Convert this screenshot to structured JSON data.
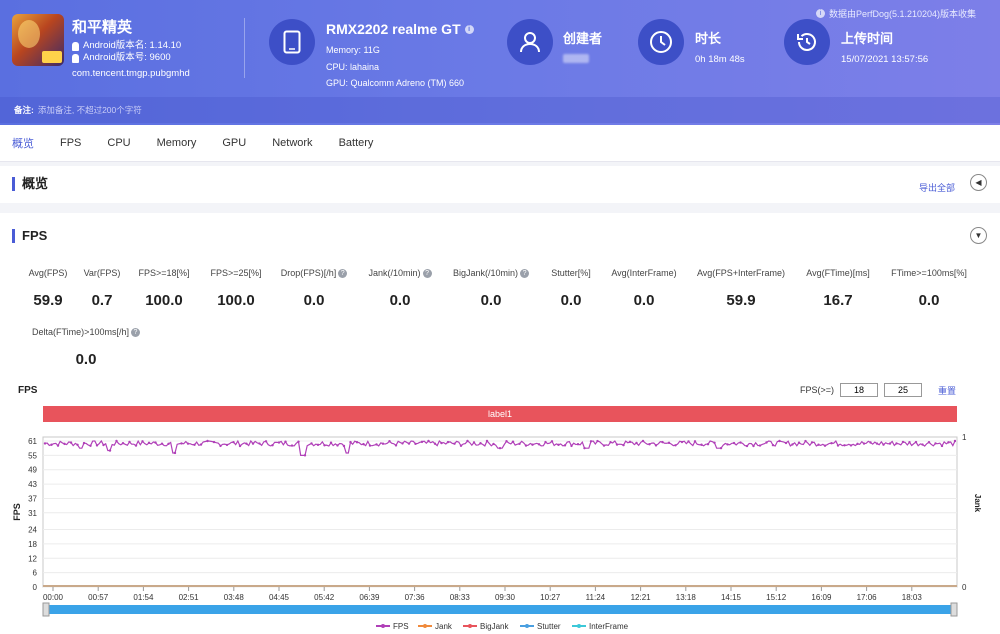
{
  "app": {
    "name": "和平精英",
    "version_name": "Android版本名: 1.14.10",
    "version_code": "Android版本号: 9600",
    "package": "com.tencent.tmgp.pubgmhd"
  },
  "device": {
    "name": "RMX2202 realme GT",
    "memory": "Memory: 11G",
    "cpu": "CPU: lahaina",
    "gpu": "GPU: Qualcomm Adreno (TM) 660"
  },
  "creator": {
    "label": "创建者"
  },
  "duration": {
    "label": "时长",
    "value": "0h 18m 48s"
  },
  "upload": {
    "label": "上传时间",
    "value": "15/07/2021 13:57:56"
  },
  "source": "数据由PerfDog(5.1.210204)版本收集",
  "note": {
    "label": "备注:",
    "placeholder": "添加备注, 不超过200个字符"
  },
  "tabs": [
    "概览",
    "FPS",
    "CPU",
    "Memory",
    "GPU",
    "Network",
    "Battery"
  ],
  "overview": {
    "title": "概览",
    "export_label": "导出全部"
  },
  "fps_section": {
    "title": "FPS"
  },
  "metrics": [
    {
      "label": "Avg(FPS)",
      "value": "59.9",
      "help": false
    },
    {
      "label": "Var(FPS)",
      "value": "0.7",
      "help": false
    },
    {
      "label": "FPS>=18[%]",
      "value": "100.0",
      "help": false
    },
    {
      "label": "FPS>=25[%]",
      "value": "100.0",
      "help": false
    },
    {
      "label": "Drop(FPS)[/h]",
      "value": "0.0",
      "help": true
    },
    {
      "label": "Jank(/10min)",
      "value": "0.0",
      "help": true
    },
    {
      "label": "BigJank(/10min)",
      "value": "0.0",
      "help": true
    },
    {
      "label": "Stutter[%]",
      "value": "0.0",
      "help": false
    },
    {
      "label": "Avg(InterFrame)",
      "value": "0.0",
      "help": false
    },
    {
      "label": "Avg(FPS+InterFrame)",
      "value": "59.9",
      "help": false
    },
    {
      "label": "Avg(FTime)[ms]",
      "value": "16.7",
      "help": false
    },
    {
      "label": "FTime>=100ms[%]",
      "value": "0.0",
      "help": false
    },
    {
      "label": "Delta(FTime)>100ms[/h]",
      "value": "0.0",
      "help": true
    }
  ],
  "chart_controls": {
    "title": "FPS",
    "threshold_label": "FPS(>=)",
    "threshold_1": "18",
    "threshold_2": "25",
    "reset_label": "重置",
    "label_band": "label1"
  },
  "chart_data": {
    "type": "line",
    "ylabel": "FPS",
    "y2label": "Jank",
    "ylim": [
      0,
      61
    ],
    "y_ticks": [
      0,
      6,
      12,
      18,
      24,
      31,
      37,
      43,
      49,
      55,
      61
    ],
    "y2lim": [
      0,
      1
    ],
    "x_ticks": [
      "00:00",
      "00:57",
      "01:54",
      "02:51",
      "03:48",
      "04:45",
      "05:42",
      "06:39",
      "07:36",
      "08:33",
      "09:30",
      "10:27",
      "11:24",
      "12:21",
      "13:18",
      "14:15",
      "15:12",
      "16:09",
      "17:06",
      "18:03"
    ],
    "series": [
      {
        "name": "FPS",
        "color": "#b040b8",
        "approx_value": 60,
        "dips": [
          [
            3.9,
            58
          ],
          [
            7.0,
            57
          ],
          [
            14.2,
            56
          ],
          [
            28.3,
            55
          ],
          [
            33.2,
            56
          ],
          [
            50.0,
            58
          ],
          [
            59.5,
            58
          ],
          [
            74.1,
            58
          ]
        ]
      },
      {
        "name": "Jank",
        "color": "#f08a3c",
        "value": 0
      },
      {
        "name": "BigJank",
        "color": "#e8545c",
        "value": 0
      },
      {
        "name": "Stutter",
        "color": "#4a9fe0",
        "value": 0
      },
      {
        "name": "InterFrame",
        "color": "#3cc8d8",
        "value": 0
      }
    ],
    "grid": true,
    "legend_position": "bottom"
  }
}
